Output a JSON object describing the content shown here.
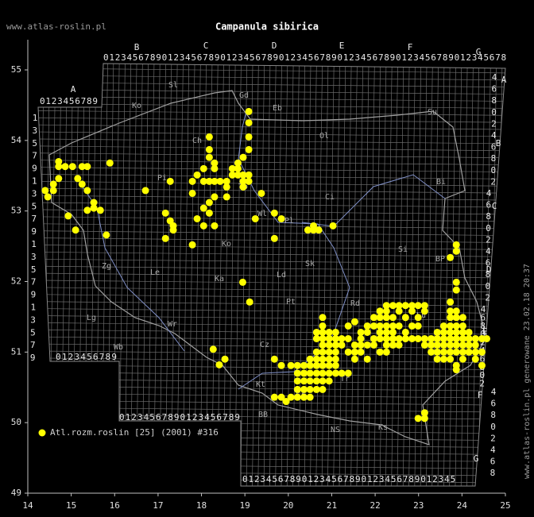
{
  "chart_data": {
    "type": "scatter",
    "title": "Campanula sibirica",
    "source": "www.atlas-roslin.pl",
    "credit": "www.atlas-roslin.pl generowane 23.02.18 20:37",
    "xlim": [
      14,
      25
    ],
    "ylim": [
      49,
      55
    ],
    "xticks": [
      14,
      15,
      16,
      17,
      18,
      19,
      20,
      21,
      22,
      23,
      24,
      25
    ],
    "yticks": [
      49,
      50,
      51,
      52,
      53,
      54,
      55
    ],
    "grid": false,
    "legend": "bottom-left",
    "annotations": [
      "Sl",
      "Gd",
      "Eb",
      "Ko",
      "Su",
      "Ol",
      "Ch",
      "Pi",
      "To",
      "Ci",
      "Bi",
      "Wl",
      "Pl",
      "Ko",
      "Sk",
      "Si",
      "BP",
      "Zg",
      "Le",
      "Ka",
      "Ld",
      "Pt",
      "Rd",
      "Lg",
      "Wr",
      "Lu",
      "Wb",
      "Cz",
      "Kt",
      "Tr",
      "Kr",
      "BB",
      "NS",
      "Ks"
    ],
    "grid_letters_top": [
      "A",
      "B",
      "C",
      "D",
      "E",
      "F",
      "G"
    ],
    "grid_letters_right": [
      "A",
      "B",
      "C",
      "D",
      "E",
      "F",
      "G"
    ],
    "grid_digit_rows": [
      "0123456789",
      "012345678901234567890123456789012345678901234567890123456789012345678",
      "0123456789",
      "01234567890123456789",
      "012345678901234567890123456789012345"
    ],
    "grid_digit_columns": [
      "13579135791357913579",
      "4680246802",
      "4680246802",
      "4680246802",
      "46802468"
    ],
    "series": [
      {
        "name": "Atl.rozm.roslin [25] (2001) #316",
        "color": "#ffff00",
        "x": [
          14.46,
          14.4,
          14.59,
          14.59,
          14.71,
          14.71,
          14.71,
          14.86,
          15.03,
          15.15,
          15.25,
          15.25,
          15.37,
          15.37,
          15.52,
          15.52,
          15.37,
          15.67,
          15.89,
          14.93,
          15.1,
          15.81,
          18.18,
          18.18,
          18.18,
          18.3,
          18.3,
          18.05,
          17.9,
          17.79,
          18.05,
          18.18,
          18.3,
          18.43,
          18.58,
          18.71,
          18.71,
          18.84,
          18.96,
          18.84,
          18.84,
          18.96,
          19.09,
          18.96,
          19.09,
          18.58,
          18.3,
          18.18,
          18.05,
          18.18,
          17.9,
          17.79,
          18.58,
          18.96,
          19.09,
          19.09,
          19.09,
          19.09,
          19.38,
          19.24,
          19.68,
          19.84,
          19.68,
          17.28,
          16.71,
          17.17,
          17.28,
          17.35,
          17.35,
          17.17,
          17.79,
          18.05,
          18.3,
          20.45,
          20.58,
          20.7,
          20.58,
          21.03,
          18.95,
          19.11,
          18.27,
          18.41,
          18.54,
          23.14,
          23.14,
          22.99,
          19.95,
          19.84,
          19.68,
          19.84,
          19.68,
          20.79,
          20.79,
          21.38,
          21.53,
          20.65,
          20.79,
          20.94,
          21.09,
          20.65,
          20.79,
          20.94,
          21.09,
          21.23,
          21.38,
          20.79,
          20.94,
          21.09,
          21.23,
          21.53,
          21.67,
          20.65,
          20.79,
          20.94,
          21.09,
          21.38,
          21.53,
          21.67,
          20.5,
          20.65,
          20.79,
          20.94,
          21.09,
          21.53,
          20.06,
          20.21,
          20.36,
          20.5,
          20.65,
          20.79,
          20.94,
          21.09,
          20.21,
          20.36,
          20.5,
          20.65,
          20.79,
          20.94,
          21.09,
          21.23,
          21.38,
          20.21,
          20.36,
          20.5,
          20.65,
          20.79,
          20.94,
          20.21,
          20.36,
          20.5,
          20.65,
          20.79,
          20.06,
          20.21,
          20.36,
          20.5,
          22.26,
          22.41,
          22.55,
          22.7,
          22.85,
          22.99,
          23.14,
          22.11,
          22.26,
          22.55,
          22.85,
          23.14,
          23.73,
          23.87,
          21.97,
          22.11,
          22.26,
          22.41,
          22.7,
          22.99,
          23.73,
          23.87,
          24.02,
          21.82,
          21.97,
          22.11,
          22.26,
          22.41,
          22.55,
          22.85,
          22.99,
          23.58,
          23.73,
          23.87,
          24.02,
          21.67,
          21.82,
          22.11,
          22.26,
          22.41,
          22.7,
          23.43,
          23.58,
          23.73,
          23.87,
          24.02,
          24.16,
          21.67,
          21.97,
          22.11,
          22.26,
          22.41,
          22.55,
          22.7,
          22.85,
          22.99,
          23.14,
          23.29,
          23.43,
          23.58,
          23.73,
          23.87,
          24.02,
          24.16,
          24.31,
          24.46,
          24.57,
          21.82,
          21.97,
          22.26,
          22.41,
          22.55,
          23.14,
          23.29,
          23.43,
          23.58,
          23.73,
          23.87,
          24.02,
          24.16,
          24.31,
          22.11,
          22.26,
          23.29,
          23.43,
          23.58,
          23.73,
          23.87,
          24.02,
          24.16,
          24.31,
          24.46,
          21.82,
          23.43,
          23.58,
          23.73,
          24.02,
          24.31,
          23.87,
          24.46,
          23.87,
          23.87,
          23.87,
          23.73,
          23.87,
          23.87,
          23.73
        ],
        "values": [
          53.2,
          53.29,
          53.29,
          53.38,
          53.46,
          53.63,
          53.7,
          53.63,
          53.63,
          53.46,
          53.63,
          53.38,
          53.63,
          53.29,
          53.12,
          53.04,
          53.01,
          53.01,
          53.68,
          52.93,
          52.73,
          52.66,
          54.05,
          53.87,
          53.76,
          53.68,
          53.6,
          53.6,
          53.51,
          53.42,
          53.42,
          53.42,
          53.42,
          53.42,
          53.42,
          53.51,
          53.6,
          53.68,
          53.76,
          53.6,
          53.51,
          53.51,
          53.51,
          53.42,
          53.42,
          53.34,
          53.2,
          53.12,
          53.04,
          52.97,
          52.89,
          53.25,
          53.2,
          53.34,
          54.41,
          54.25,
          54.05,
          53.87,
          53.25,
          52.89,
          52.97,
          52.89,
          52.61,
          53.42,
          53.29,
          52.97,
          52.86,
          52.79,
          52.73,
          52.61,
          52.52,
          52.79,
          52.79,
          52.73,
          52.73,
          52.73,
          52.79,
          52.79,
          51.99,
          51.71,
          51.04,
          50.82,
          50.9,
          50.14,
          50.06,
          50.06,
          50.3,
          50.36,
          50.9,
          50.81,
          50.36,
          51.49,
          51.37,
          51.37,
          51.43,
          51.28,
          51.28,
          51.28,
          51.28,
          51.19,
          51.19,
          51.19,
          51.19,
          51.19,
          51.19,
          51.1,
          51.1,
          51.1,
          51.1,
          51.1,
          51.1,
          51.0,
          51.0,
          51.0,
          51.0,
          51.0,
          51.0,
          51.0,
          50.9,
          50.9,
          50.9,
          50.9,
          50.9,
          50.9,
          50.81,
          50.81,
          50.81,
          50.81,
          50.81,
          50.81,
          50.81,
          50.81,
          50.7,
          50.7,
          50.7,
          50.7,
          50.7,
          50.7,
          50.7,
          50.7,
          50.7,
          50.59,
          50.59,
          50.59,
          50.59,
          50.59,
          50.59,
          50.47,
          50.47,
          50.47,
          50.47,
          50.47,
          50.36,
          50.36,
          50.36,
          50.36,
          51.66,
          51.66,
          51.66,
          51.66,
          51.66,
          51.66,
          51.66,
          51.58,
          51.58,
          51.58,
          51.58,
          51.58,
          51.58,
          51.58,
          51.49,
          51.49,
          51.49,
          51.49,
          51.49,
          51.49,
          51.49,
          51.49,
          51.49,
          51.37,
          51.37,
          51.37,
          51.37,
          51.37,
          51.37,
          51.37,
          51.37,
          51.37,
          51.37,
          51.37,
          51.37,
          51.28,
          51.28,
          51.28,
          51.28,
          51.28,
          51.28,
          51.28,
          51.28,
          51.28,
          51.28,
          51.28,
          51.28,
          51.19,
          51.19,
          51.19,
          51.19,
          51.19,
          51.19,
          51.19,
          51.19,
          51.19,
          51.19,
          51.19,
          51.19,
          51.19,
          51.19,
          51.19,
          51.19,
          51.19,
          51.19,
          51.19,
          51.19,
          51.1,
          51.1,
          51.1,
          51.1,
          51.1,
          51.1,
          51.1,
          51.1,
          51.1,
          51.1,
          51.1,
          51.1,
          51.1,
          51.1,
          51.0,
          51.0,
          51.0,
          51.0,
          51.0,
          51.0,
          51.0,
          51.0,
          51.0,
          51.0,
          51.0,
          50.9,
          50.9,
          50.9,
          50.9,
          50.9,
          50.9,
          50.81,
          50.81,
          50.75,
          52.52,
          52.43,
          52.34,
          51.99,
          51.88,
          51.71
        ]
      }
    ]
  }
}
